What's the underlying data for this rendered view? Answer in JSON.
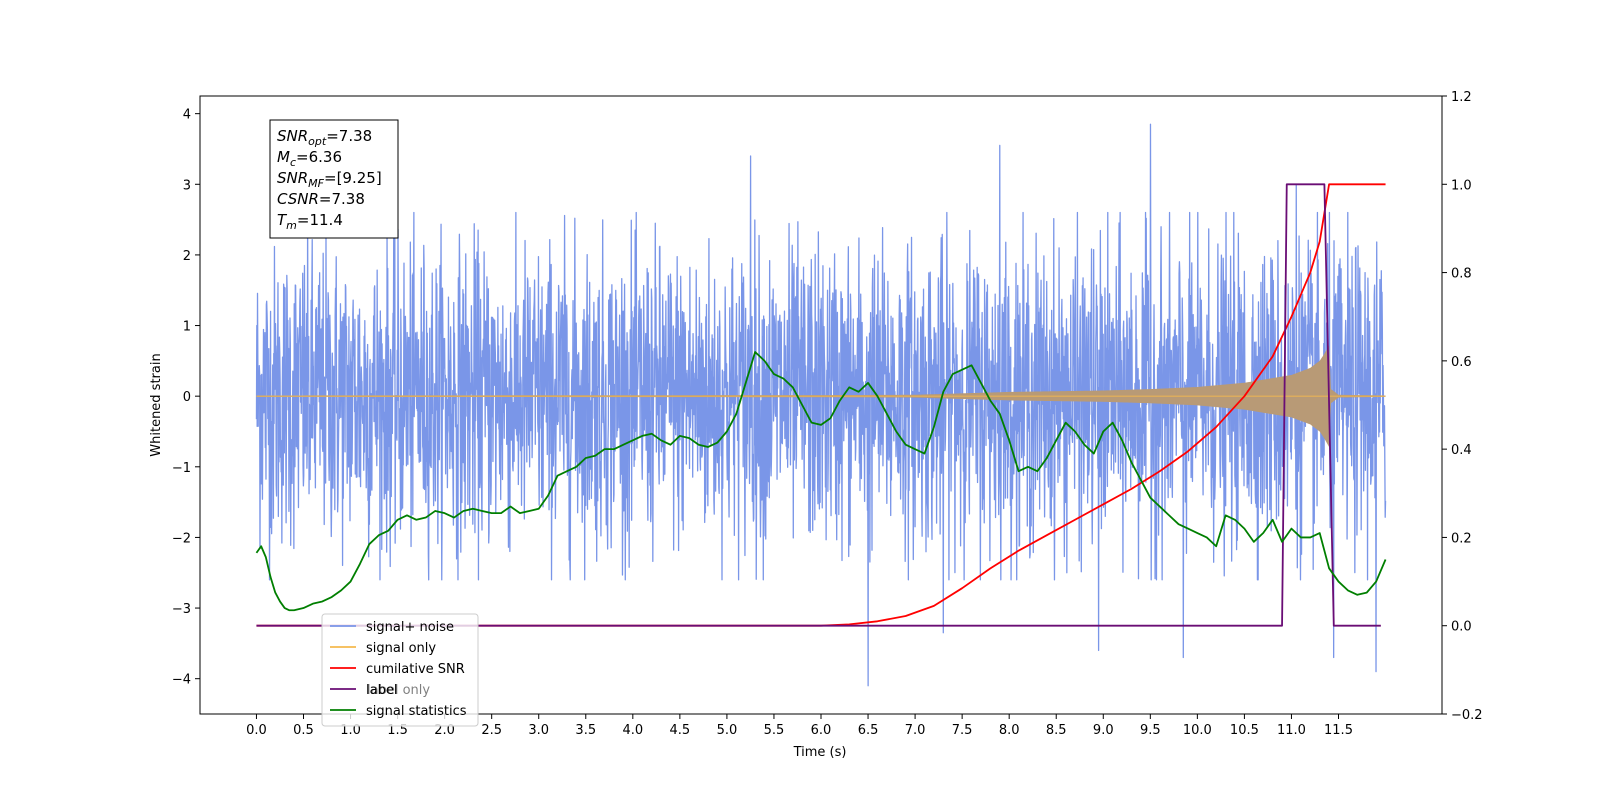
{
  "chart_data": {
    "type": "line",
    "xlabel": "Time (s)",
    "ylabel_left": "Whitened strain",
    "ylabel_right": "",
    "xlim": [
      -0.6,
      12.6
    ],
    "ylim_left": [
      -4.5,
      4.25
    ],
    "ylim_right": [
      -0.2,
      1.2
    ],
    "x_ticks": [
      "0.0",
      "0.5",
      "1.0",
      "1.5",
      "2.0",
      "2.5",
      "3.0",
      "3.5",
      "4.0",
      "4.5",
      "5.0",
      "5.5",
      "6.0",
      "6.5",
      "7.0",
      "7.5",
      "8.0",
      "8.5",
      "9.0",
      "9.5",
      "10.0",
      "10.5",
      "11.0",
      "11.5"
    ],
    "y_ticks_left": [
      "−4",
      "−3",
      "−2",
      "−1",
      "0",
      "1",
      "2",
      "3",
      "4"
    ],
    "y_ticks_right": [
      "−0.2",
      "0.0",
      "0.2",
      "0.4",
      "0.6",
      "0.8",
      "1.0",
      "1.2"
    ],
    "grid": false,
    "legend": {
      "placement": "lower-left",
      "entries": [
        {
          "label": "signal+ noise",
          "color": "#7a96e8"
        },
        {
          "label": "signal only",
          "color": "#f5b94e"
        },
        {
          "label": "cumilative SNR",
          "color": "#ff0000"
        },
        {
          "label": "label",
          "color": "#6a0d75"
        },
        {
          "label": "signal statistics",
          "color": "#007f00"
        }
      ],
      "overlapped_text": "label only"
    },
    "info_box": {
      "lines": [
        {
          "base": "SNR",
          "sub": "opt",
          "rest": "=7.38"
        },
        {
          "base": "M",
          "sub": "c",
          "rest": "=6.36"
        },
        {
          "base": "SNR",
          "sub": "MF",
          "rest": "=[9.25]"
        },
        {
          "base": "CSNR",
          "sub": "",
          "rest": "=7.38"
        },
        {
          "base": "T",
          "sub": "m",
          "rest": "=11.4"
        }
      ]
    },
    "series": [
      {
        "name": "signal+ noise",
        "axis": "left",
        "color": "#7a96e8",
        "x_range": [
          0.0,
          12.0
        ],
        "typical_amplitude": [
          -2.3,
          2.3
        ],
        "peaks": [
          {
            "x": 5.25,
            "y": 3.4
          },
          {
            "x": 9.5,
            "y": 3.85
          },
          {
            "x": 7.9,
            "y": 3.55
          },
          {
            "x": 11.05,
            "y": 3.0
          },
          {
            "x": 6.5,
            "y": -4.1
          },
          {
            "x": 11.9,
            "y": -3.9
          },
          {
            "x": 9.85,
            "y": -3.7
          },
          {
            "x": 11.45,
            "y": -3.7
          },
          {
            "x": 8.95,
            "y": -3.6
          },
          {
            "x": 7.3,
            "y": -3.35
          }
        ]
      },
      {
        "name": "signal only",
        "axis": "left",
        "color": "#f5b94e",
        "x_range": [
          0.0,
          12.0
        ],
        "envelope": [
          {
            "x": 0.0,
            "a": 0.01
          },
          {
            "x": 6.0,
            "a": 0.015
          },
          {
            "x": 7.0,
            "a": 0.02
          },
          {
            "x": 7.5,
            "a": 0.04
          },
          {
            "x": 8.0,
            "a": 0.06
          },
          {
            "x": 9.0,
            "a": 0.08
          },
          {
            "x": 9.5,
            "a": 0.1
          },
          {
            "x": 10.0,
            "a": 0.13
          },
          {
            "x": 10.5,
            "a": 0.19
          },
          {
            "x": 11.0,
            "a": 0.3
          },
          {
            "x": 11.2,
            "a": 0.4
          },
          {
            "x": 11.3,
            "a": 0.5
          },
          {
            "x": 11.35,
            "a": 0.6
          },
          {
            "x": 11.4,
            "a": 0.72
          },
          {
            "x": 11.42,
            "a": 0.1
          },
          {
            "x": 11.5,
            "a": 0.02
          },
          {
            "x": 12.0,
            "a": 0.01
          }
        ]
      },
      {
        "name": "cumilative SNR",
        "axis": "right",
        "color": "#ff0000",
        "x": [
          0.0,
          6.0,
          6.3,
          6.6,
          6.9,
          7.2,
          7.5,
          7.8,
          8.1,
          8.4,
          8.7,
          9.0,
          9.3,
          9.6,
          9.9,
          10.2,
          10.5,
          10.8,
          11.0,
          11.2,
          11.3,
          11.4,
          11.6,
          11.8,
          12.0
        ],
        "y": [
          0.0,
          0.0,
          0.003,
          0.01,
          0.022,
          0.045,
          0.085,
          0.13,
          0.17,
          0.205,
          0.24,
          0.275,
          0.31,
          0.35,
          0.395,
          0.45,
          0.52,
          0.61,
          0.7,
          0.8,
          0.87,
          1.0,
          1.0,
          1.0,
          1.0
        ]
      },
      {
        "name": "label",
        "axis": "right",
        "color": "#6a0d75",
        "x": [
          0.0,
          10.9,
          10.95,
          11.35,
          11.45,
          11.95
        ],
        "y": [
          0.0,
          0.0,
          1.0,
          1.0,
          0.0,
          0.0
        ]
      },
      {
        "name": "signal statistics",
        "axis": "right",
        "color": "#007f00",
        "x": [
          0.0,
          0.05,
          0.1,
          0.15,
          0.2,
          0.25,
          0.3,
          0.35,
          0.4,
          0.5,
          0.6,
          0.7,
          0.8,
          0.9,
          1.0,
          1.1,
          1.2,
          1.3,
          1.4,
          1.5,
          1.6,
          1.7,
          1.8,
          1.9,
          2.0,
          2.1,
          2.2,
          2.3,
          2.4,
          2.5,
          2.6,
          2.7,
          2.8,
          2.9,
          3.0,
          3.1,
          3.2,
          3.3,
          3.4,
          3.5,
          3.6,
          3.7,
          3.8,
          3.9,
          4.0,
          4.1,
          4.2,
          4.3,
          4.4,
          4.5,
          4.6,
          4.7,
          4.8,
          4.9,
          5.0,
          5.1,
          5.2,
          5.3,
          5.4,
          5.5,
          5.6,
          5.7,
          5.8,
          5.9,
          6.0,
          6.1,
          6.2,
          6.3,
          6.4,
          6.5,
          6.6,
          6.7,
          6.8,
          6.9,
          7.0,
          7.1,
          7.2,
          7.3,
          7.4,
          7.5,
          7.6,
          7.7,
          7.8,
          7.9,
          8.0,
          8.1,
          8.2,
          8.3,
          8.4,
          8.5,
          8.6,
          8.7,
          8.8,
          8.9,
          9.0,
          9.1,
          9.2,
          9.3,
          9.4,
          9.5,
          9.6,
          9.7,
          9.8,
          9.9,
          10.0,
          10.1,
          10.2,
          10.3,
          10.4,
          10.5,
          10.6,
          10.7,
          10.8,
          10.9,
          11.0,
          11.1,
          11.2,
          11.3,
          11.4,
          11.5,
          11.6,
          11.7,
          11.8,
          11.9,
          12.0
        ],
        "y": [
          0.165,
          0.18,
          0.155,
          0.11,
          0.075,
          0.055,
          0.04,
          0.035,
          0.035,
          0.04,
          0.05,
          0.055,
          0.065,
          0.08,
          0.1,
          0.14,
          0.185,
          0.205,
          0.215,
          0.24,
          0.25,
          0.24,
          0.245,
          0.26,
          0.255,
          0.245,
          0.26,
          0.265,
          0.26,
          0.255,
          0.255,
          0.27,
          0.255,
          0.26,
          0.265,
          0.295,
          0.34,
          0.35,
          0.36,
          0.38,
          0.385,
          0.4,
          0.4,
          0.41,
          0.42,
          0.43,
          0.435,
          0.42,
          0.41,
          0.43,
          0.425,
          0.41,
          0.405,
          0.415,
          0.44,
          0.48,
          0.55,
          0.62,
          0.6,
          0.57,
          0.56,
          0.54,
          0.5,
          0.46,
          0.455,
          0.47,
          0.51,
          0.54,
          0.53,
          0.55,
          0.52,
          0.48,
          0.44,
          0.41,
          0.4,
          0.39,
          0.45,
          0.53,
          0.57,
          0.58,
          0.59,
          0.55,
          0.51,
          0.48,
          0.42,
          0.35,
          0.36,
          0.35,
          0.38,
          0.42,
          0.46,
          0.44,
          0.41,
          0.39,
          0.44,
          0.46,
          0.42,
          0.37,
          0.33,
          0.29,
          0.27,
          0.25,
          0.23,
          0.22,
          0.21,
          0.2,
          0.18,
          0.25,
          0.24,
          0.22,
          0.19,
          0.21,
          0.24,
          0.19,
          0.22,
          0.2,
          0.2,
          0.21,
          0.13,
          0.1,
          0.08,
          0.07,
          0.075,
          0.1,
          0.15
        ]
      }
    ]
  }
}
